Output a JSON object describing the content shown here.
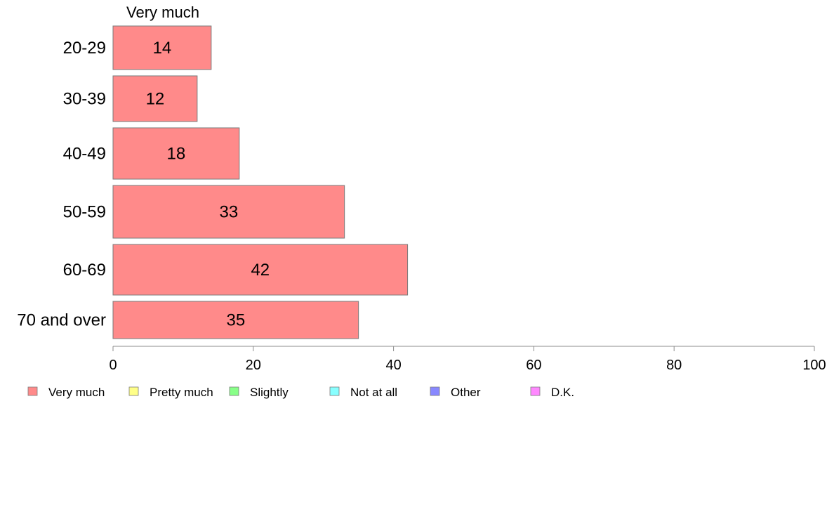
{
  "chart_data": {
    "type": "bar",
    "orientation": "horizontal",
    "column_header": "Very much",
    "categories": [
      "20-29",
      "30-39",
      "40-49",
      "50-59",
      "60-69",
      "70 and over"
    ],
    "series": [
      {
        "name": "Very much",
        "values": [
          14,
          12,
          18,
          33,
          42,
          35
        ],
        "color": "#ff8a8a"
      }
    ],
    "value_labels": [
      "14",
      "12",
      "18",
      "33",
      "42",
      "35"
    ],
    "xlim": [
      0,
      100
    ],
    "x_ticks": [
      "0",
      "20",
      "40",
      "60",
      "80",
      "100"
    ],
    "grid": false,
    "legend_position": "bottom",
    "legend": [
      {
        "label": "Very much",
        "color": "#ff8a8a"
      },
      {
        "label": "Pretty much",
        "color": "#ffff88"
      },
      {
        "label": "Slightly",
        "color": "#88ff88"
      },
      {
        "label": "Not at all",
        "color": "#88ffff"
      },
      {
        "label": "Other",
        "color": "#8888ff"
      },
      {
        "label": "D.K.",
        "color": "#ff88ff"
      }
    ]
  }
}
